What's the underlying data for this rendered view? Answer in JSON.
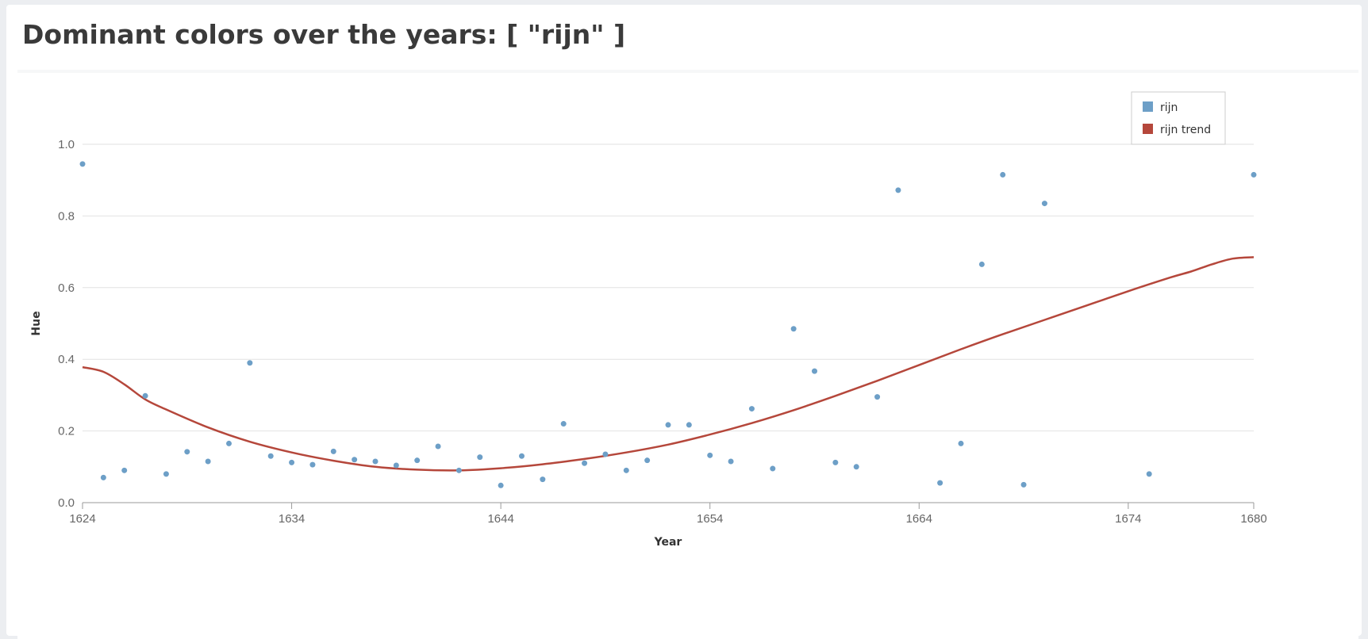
{
  "page": {
    "title": "Dominant colors over the years: [ \"rijn\" ]"
  },
  "colors": {
    "points": "#6d9fc7",
    "trend": "#b5473b",
    "grid": "#e2e2e2",
    "axis": "#9a9a9a"
  },
  "chart_data": {
    "type": "scatter",
    "xlabel": "Year",
    "ylabel": "Hue",
    "xlim": [
      1624,
      1680
    ],
    "ylim": [
      0,
      1
    ],
    "xticks": [
      1624,
      1634,
      1644,
      1654,
      1664,
      1674,
      1680
    ],
    "yticks": [
      0.0,
      0.2,
      0.4,
      0.6,
      0.8,
      1.0
    ],
    "ytick_labels": [
      "0.0",
      "0.2",
      "0.4",
      "0.6",
      "0.8",
      "1.0"
    ],
    "legend": {
      "position": "top-right",
      "entries": [
        "rijn",
        "rijn trend"
      ]
    },
    "series": [
      {
        "name": "rijn",
        "kind": "scatter",
        "points": [
          [
            1624.0,
            0.945
          ],
          [
            1625.0,
            0.07
          ],
          [
            1626.0,
            0.09
          ],
          [
            1627.0,
            0.298
          ],
          [
            1628.0,
            0.08
          ],
          [
            1629.0,
            0.142
          ],
          [
            1630.0,
            0.115
          ],
          [
            1631.0,
            0.165
          ],
          [
            1632.0,
            0.39
          ],
          [
            1633.0,
            0.13
          ],
          [
            1634.0,
            0.112
          ],
          [
            1635.0,
            0.106
          ],
          [
            1636.0,
            0.143
          ],
          [
            1637.0,
            0.12
          ],
          [
            1638.0,
            0.115
          ],
          [
            1639.0,
            0.104
          ],
          [
            1640.0,
            0.118
          ],
          [
            1641.0,
            0.157
          ],
          [
            1642.0,
            0.09
          ],
          [
            1643.0,
            0.127
          ],
          [
            1644.0,
            0.048
          ],
          [
            1645.0,
            0.13
          ],
          [
            1646.0,
            0.065
          ],
          [
            1647.0,
            0.22
          ],
          [
            1648.0,
            0.11
          ],
          [
            1649.0,
            0.135
          ],
          [
            1650.0,
            0.09
          ],
          [
            1651.0,
            0.118
          ],
          [
            1652.0,
            0.217
          ],
          [
            1653.0,
            0.217
          ],
          [
            1654.0,
            0.132
          ],
          [
            1655.0,
            0.115
          ],
          [
            1656.0,
            0.262
          ],
          [
            1657.0,
            0.095
          ],
          [
            1658.0,
            0.485
          ],
          [
            1659.0,
            0.367
          ],
          [
            1660.0,
            0.112
          ],
          [
            1661.0,
            0.1
          ],
          [
            1662.0,
            0.295
          ],
          [
            1663.0,
            0.872
          ],
          [
            1665.0,
            0.055
          ],
          [
            1666.0,
            0.165
          ],
          [
            1667.0,
            0.665
          ],
          [
            1668.0,
            0.915
          ],
          [
            1669.0,
            0.05
          ],
          [
            1670.0,
            0.835
          ],
          [
            1675.0,
            0.08
          ],
          [
            1680.0,
            0.915
          ]
        ]
      },
      {
        "name": "rijn trend",
        "kind": "line",
        "points": [
          [
            1624.0,
            0.378
          ],
          [
            1625.0,
            0.365
          ],
          [
            1626.0,
            0.33
          ],
          [
            1627.0,
            0.288
          ],
          [
            1628.0,
            0.26
          ],
          [
            1630.0,
            0.21
          ],
          [
            1632.0,
            0.17
          ],
          [
            1634.0,
            0.14
          ],
          [
            1636.0,
            0.117
          ],
          [
            1638.0,
            0.1
          ],
          [
            1640.0,
            0.092
          ],
          [
            1642.0,
            0.09
          ],
          [
            1644.0,
            0.096
          ],
          [
            1646.0,
            0.107
          ],
          [
            1648.0,
            0.122
          ],
          [
            1650.0,
            0.14
          ],
          [
            1652.0,
            0.162
          ],
          [
            1654.0,
            0.19
          ],
          [
            1656.0,
            0.222
          ],
          [
            1658.0,
            0.258
          ],
          [
            1660.0,
            0.298
          ],
          [
            1662.0,
            0.34
          ],
          [
            1664.0,
            0.384
          ],
          [
            1666.0,
            0.428
          ],
          [
            1668.0,
            0.47
          ],
          [
            1670.0,
            0.51
          ],
          [
            1672.0,
            0.55
          ],
          [
            1674.0,
            0.59
          ],
          [
            1676.0,
            0.628
          ],
          [
            1677.0,
            0.645
          ],
          [
            1678.0,
            0.665
          ],
          [
            1679.0,
            0.681
          ],
          [
            1680.0,
            0.685
          ]
        ]
      }
    ]
  }
}
